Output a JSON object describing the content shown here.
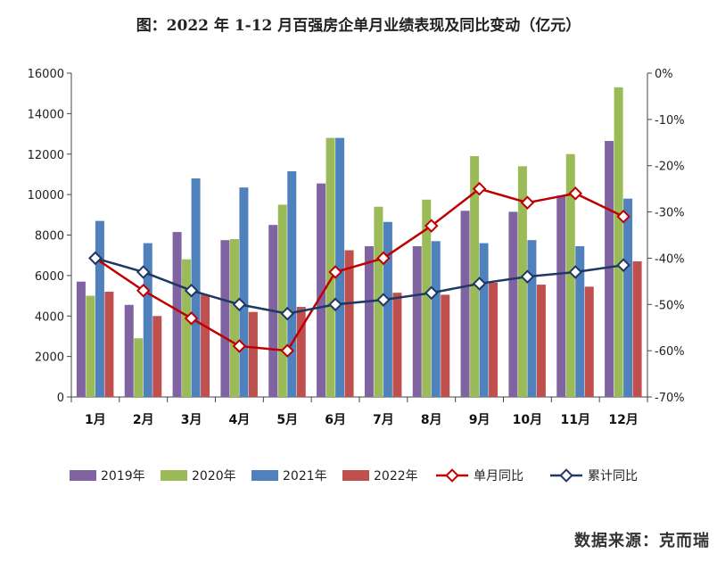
{
  "title": "图：2022 年 1-12 月百强房企单月业绩表现及同比变动（亿元）",
  "watermark": "数据来源：克而瑞",
  "chart_data": {
    "type": "bar",
    "categories": [
      "1月",
      "2月",
      "3月",
      "4月",
      "5月",
      "6月",
      "7月",
      "8月",
      "9月",
      "10月",
      "11月",
      "12月"
    ],
    "series": [
      {
        "name": "2019年",
        "kind": "bar",
        "axis": "left",
        "color": "#8064a2",
        "values": [
          5700,
          4550,
          8150,
          7750,
          8500,
          10550,
          7450,
          7450,
          9200,
          9150,
          9950,
          12650
        ]
      },
      {
        "name": "2020年",
        "kind": "bar",
        "axis": "left",
        "color": "#9bbb59",
        "values": [
          5000,
          2900,
          6800,
          7800,
          9500,
          12800,
          9400,
          9750,
          11900,
          11400,
          12000,
          15300
        ]
      },
      {
        "name": "2021年",
        "kind": "bar",
        "axis": "left",
        "color": "#4f81bd",
        "values": [
          8700,
          7600,
          10800,
          10350,
          11150,
          12800,
          8650,
          7700,
          7600,
          7750,
          7450,
          9800
        ]
      },
      {
        "name": "2022年",
        "kind": "bar",
        "axis": "left",
        "color": "#c0504d",
        "values": [
          5200,
          4000,
          5050,
          4200,
          4450,
          7250,
          5150,
          5050,
          5650,
          5550,
          5450,
          6700
        ]
      },
      {
        "name": "单月同比",
        "kind": "line",
        "axis": "right",
        "color": "#c00000",
        "values": [
          -40,
          -47,
          -53,
          -59,
          -60,
          -43,
          -40,
          -33,
          -25,
          -28,
          -26,
          -31
        ]
      },
      {
        "name": "累计同比",
        "kind": "line",
        "axis": "right",
        "color": "#1f3864",
        "values": [
          -40,
          -43,
          -47,
          -50,
          -52,
          -50,
          -49,
          -47.5,
          -45.5,
          -44,
          -43,
          -41.5
        ]
      }
    ],
    "y_left": {
      "min": 0,
      "max": 16000,
      "ticks": [
        "0",
        "2000",
        "4000",
        "6000",
        "8000",
        "10000",
        "12000",
        "14000",
        "16000"
      ]
    },
    "y_right": {
      "min": -70,
      "max": 0,
      "ticks": [
        "0%",
        "-10%",
        "-20%",
        "-30%",
        "-40%",
        "-50%",
        "-60%",
        "-70%"
      ]
    },
    "grid": false,
    "legend_position": "bottom"
  }
}
